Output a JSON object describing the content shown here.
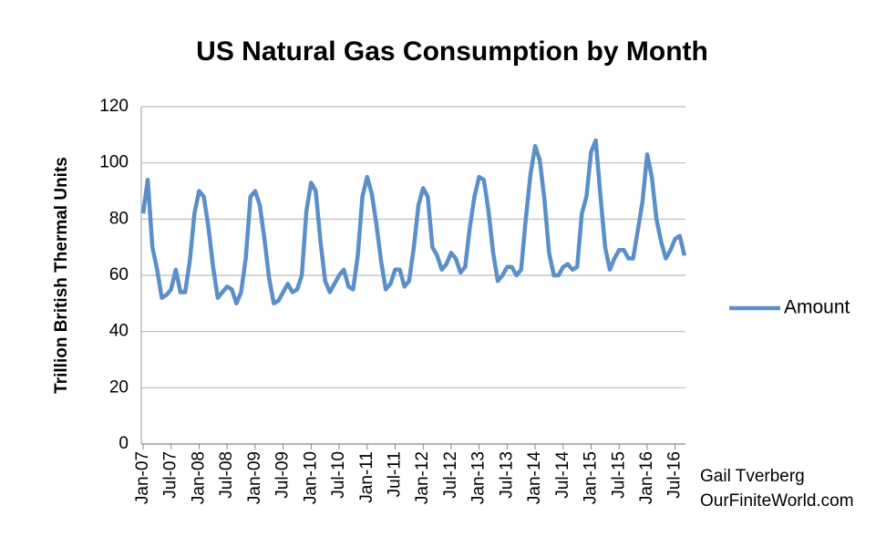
{
  "chart_data": {
    "type": "line",
    "title": "US Natural Gas Consumption by Month",
    "y_label": "Trillion British Thermal Units",
    "credit": [
      "Gail Tverberg",
      "OurFiniteWorld.com"
    ],
    "categories": [
      "Jan-07",
      null,
      null,
      null,
      null,
      null,
      "Jul-07",
      null,
      null,
      null,
      null,
      null,
      "Jan-08",
      null,
      null,
      null,
      null,
      null,
      "Jul-08",
      null,
      null,
      null,
      null,
      null,
      "Jan-09",
      null,
      null,
      null,
      null,
      null,
      "Jul-09",
      null,
      null,
      null,
      null,
      null,
      "Jan-10",
      null,
      null,
      null,
      null,
      null,
      "Jul-10",
      null,
      null,
      null,
      null,
      null,
      "Jan-11",
      null,
      null,
      null,
      null,
      null,
      "Jul-11",
      null,
      null,
      null,
      null,
      null,
      "Jan-12",
      null,
      null,
      null,
      null,
      null,
      "Jul-12",
      null,
      null,
      null,
      null,
      null,
      "Jan-13",
      null,
      null,
      null,
      null,
      null,
      "Jul-13",
      null,
      null,
      null,
      null,
      null,
      "Jan-14",
      null,
      null,
      null,
      null,
      null,
      "Jul-14",
      null,
      null,
      null,
      null,
      null,
      "Jan-15",
      null,
      null,
      null,
      null,
      null,
      "Jul-15",
      null,
      null,
      null,
      null,
      null,
      "Jan-16",
      null,
      null,
      null,
      null,
      null,
      "Jul-16",
      null,
      null
    ],
    "series": [
      {
        "name": "Amount",
        "color": "#5b8fc9",
        "values": [
          82,
          94,
          70,
          62,
          52,
          53,
          55,
          62,
          54,
          54,
          65,
          82,
          90,
          88,
          77,
          63,
          52,
          54,
          56,
          55,
          50,
          54,
          66,
          88,
          90,
          85,
          73,
          59,
          50,
          51,
          54,
          57,
          54,
          55,
          60,
          83,
          93,
          90,
          72,
          58,
          54,
          57,
          60,
          62,
          56,
          55,
          67,
          88,
          95,
          89,
          78,
          65,
          55,
          57,
          62,
          62,
          56,
          58,
          70,
          85,
          91,
          88,
          70,
          67,
          62,
          64,
          68,
          66,
          61,
          63,
          77,
          88,
          95,
          94,
          83,
          68,
          58,
          60,
          63,
          63,
          60,
          62,
          80,
          96,
          106,
          101,
          87,
          68,
          60,
          60,
          63,
          64,
          62,
          63,
          82,
          88,
          104,
          108,
          88,
          70,
          62,
          66,
          69,
          69,
          66,
          66,
          76,
          86,
          103,
          95,
          80,
          72,
          66,
          69,
          73,
          74,
          67
        ]
      }
    ],
    "ylim": [
      0,
      120
    ],
    "yticks": [
      0,
      20,
      40,
      60,
      80,
      100,
      120
    ],
    "grid": true,
    "legend": "right"
  }
}
